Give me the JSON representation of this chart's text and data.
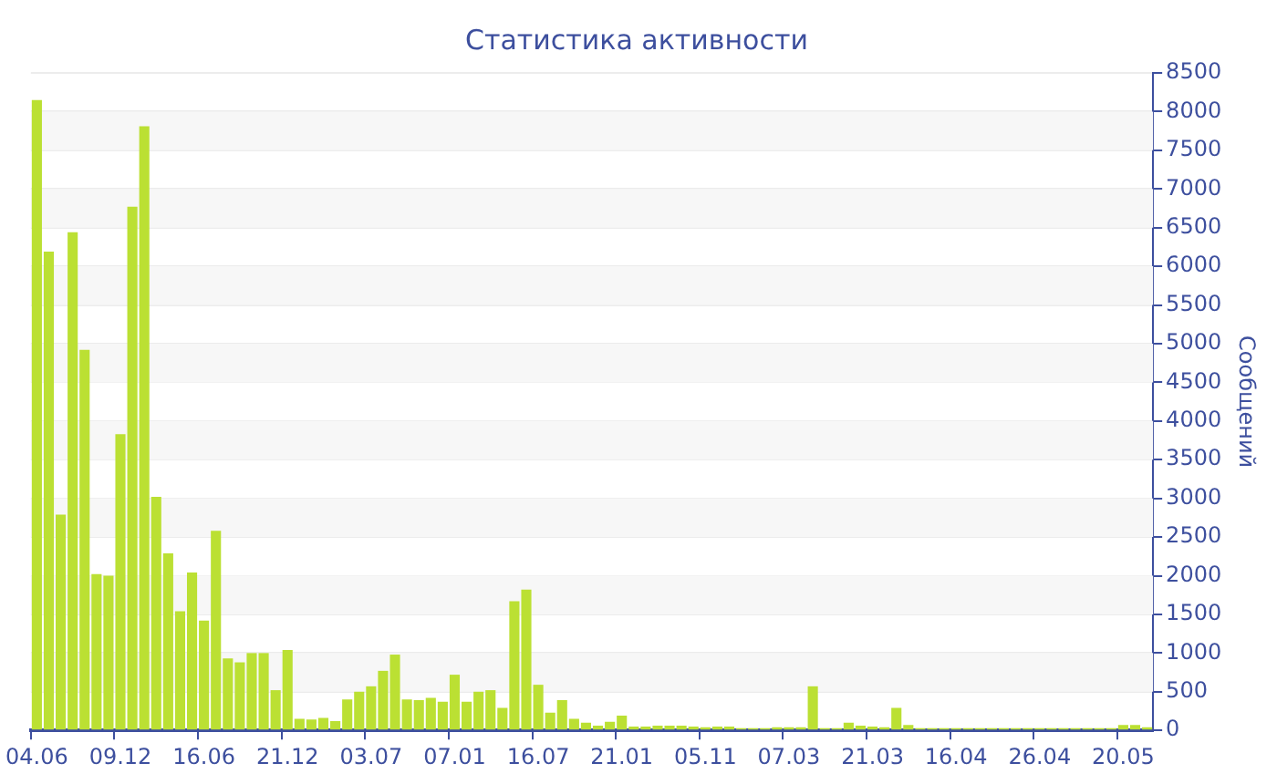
{
  "chart_data": {
    "type": "bar",
    "title": "Статистика активности",
    "ylabel": "Сообщений",
    "categories": [
      "04.06",
      null,
      null,
      null,
      null,
      null,
      null,
      "09.12",
      null,
      null,
      null,
      null,
      null,
      null,
      "16.06",
      null,
      null,
      null,
      null,
      null,
      null,
      "21.12",
      null,
      null,
      null,
      null,
      null,
      null,
      "03.07",
      null,
      null,
      null,
      null,
      null,
      null,
      "07.01",
      null,
      null,
      null,
      null,
      null,
      null,
      "16.07",
      null,
      null,
      null,
      null,
      null,
      null,
      "21.01",
      null,
      null,
      null,
      null,
      null,
      null,
      "05.11",
      null,
      null,
      null,
      null,
      null,
      null,
      "07.03",
      null,
      null,
      null,
      null,
      null,
      null,
      "21.03",
      null,
      null,
      null,
      null,
      null,
      null,
      "16.04",
      null,
      null,
      null,
      null,
      null,
      null,
      "26.04",
      null,
      null,
      null,
      null,
      null,
      null,
      "20.05",
      null,
      null
    ],
    "values": [
      8150,
      6190,
      2790,
      6440,
      4920,
      2020,
      2000,
      3830,
      6770,
      7810,
      3020,
      2290,
      1540,
      2040,
      1420,
      2580,
      930,
      880,
      1000,
      1000,
      520,
      1040,
      150,
      140,
      160,
      120,
      400,
      500,
      570,
      770,
      980,
      400,
      390,
      420,
      370,
      720,
      370,
      500,
      520,
      290,
      1670,
      1820,
      590,
      230,
      390,
      150,
      100,
      60,
      110,
      190,
      50,
      50,
      60,
      60,
      60,
      50,
      40,
      50,
      50,
      30,
      30,
      30,
      40,
      40,
      40,
      570,
      30,
      30,
      100,
      60,
      50,
      40,
      290,
      70,
      30,
      30,
      30,
      30,
      30,
      30,
      30,
      30,
      30,
      30,
      30,
      30,
      30,
      30,
      30,
      30,
      30,
      70,
      70,
      40
    ],
    "color": "#bbe033",
    "ylim": [
      0,
      8500
    ],
    "yticks": [
      0,
      500,
      1000,
      1500,
      2000,
      2500,
      3000,
      3500,
      4000,
      4500,
      5000,
      5500,
      6000,
      6500,
      7000,
      7500,
      8000,
      8500
    ],
    "grid": "y"
  }
}
